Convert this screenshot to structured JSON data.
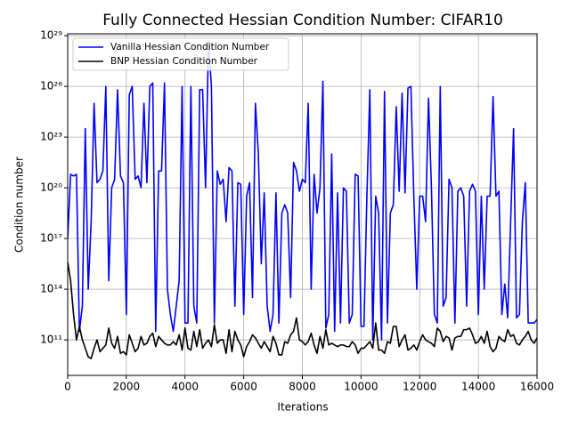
{
  "chart_data": {
    "type": "line",
    "title": "Fully Connected Hessian Condition Number: CIFAR10",
    "xlabel": "Iterations",
    "ylabel": "Condition number",
    "yscale": "log",
    "grid": true,
    "legend": "upper left",
    "xlim": [
      0,
      16000
    ],
    "xticks": [
      0,
      2000,
      4000,
      6000,
      8000,
      10000,
      12000,
      14000,
      16000
    ],
    "ylim": [
      790000000.0,
      1.3e+29
    ],
    "yticks": [
      {
        "value": 100000000000.0,
        "label": "10¹¹"
      },
      {
        "value": 100000000000000.0,
        "label": "10¹⁴"
      },
      {
        "value": 1e+17,
        "label": "10¹⁷"
      },
      {
        "value": 1e+20,
        "label": "10²⁰"
      },
      {
        "value": 1e+23,
        "label": "10²³"
      },
      {
        "value": 1e+26,
        "label": "10²⁶"
      },
      {
        "value": 1e+29,
        "label": "10²⁹"
      }
    ],
    "x": [
      0,
      100,
      200,
      300,
      400,
      500,
      600,
      700,
      800,
      900,
      1000,
      1100,
      1200,
      1300,
      1400,
      1500,
      1600,
      1700,
      1800,
      1900,
      2000,
      2100,
      2200,
      2300,
      2400,
      2500,
      2600,
      2700,
      2800,
      2900,
      3000,
      3100,
      3200,
      3300,
      3400,
      3500,
      3600,
      3700,
      3800,
      3900,
      4000,
      4100,
      4200,
      4300,
      4400,
      4500,
      4600,
      4700,
      4800,
      4900,
      5000,
      5100,
      5200,
      5300,
      5400,
      5500,
      5600,
      5700,
      5800,
      5900,
      6000,
      6100,
      6200,
      6300,
      6400,
      6500,
      6600,
      6700,
      6800,
      6900,
      7000,
      7100,
      7200,
      7300,
      7400,
      7500,
      7600,
      7700,
      7800,
      7900,
      8000,
      8100,
      8200,
      8300,
      8400,
      8500,
      8600,
      8700,
      8800,
      8900,
      9000,
      9100,
      9200,
      9300,
      9400,
      9500,
      9600,
      9700,
      9800,
      9900,
      10000,
      10100,
      10200,
      10300,
      10400,
      10500,
      10600,
      10700,
      10800,
      10900,
      11000,
      11100,
      11200,
      11300,
      11400,
      11500,
      11600,
      11700,
      11800,
      11900,
      12000,
      12100,
      12200,
      12300,
      12400,
      12500,
      12600,
      12700,
      12800,
      12900,
      13000,
      13100,
      13200,
      13300,
      13400,
      13500,
      13600,
      13700,
      13800,
      13900,
      14000,
      14100,
      14200,
      14300,
      14400,
      14500,
      14600,
      14700,
      14800,
      14900,
      15000,
      15100,
      15200,
      15300,
      15400,
      15500,
      15600,
      15700,
      15800,
      15900,
      16000
    ],
    "series": [
      {
        "name": "Vanilla Hessian Condition Number",
        "color": "#0000ff",
        "values": [
          1e+17,
          6.3e+20,
          5e+20,
          6.3e+20,
          320000000000.0,
          10000000000000.0,
          3.2e+23,
          100000000000000.0,
          1e+18,
          1e+25,
          2e+20,
          3.2e+20,
          1e+21,
          1e+26,
          320000000000000.0,
          1e+20,
          3.2e+20,
          6.3e+25,
          5e+20,
          2e+20,
          3200000000000.0,
          3.2e+25,
          1e+26,
          3.2e+20,
          5e+20,
          1e+20,
          1e+25,
          2e+20,
          1e+26,
          1.6e+26,
          320000000000.0,
          1e+21,
          1e+21,
          1.6e+26,
          100000000000000.0,
          3200000000000.0,
          320000000000.0,
          10000000000000.0,
          320000000000000.0,
          1e+26,
          1000000000000.0,
          1000000000000.0,
          1e+26,
          10000000000000.0,
          1000000000000.0,
          6.3e+25,
          6.3e+25,
          1e+20,
          5e+28,
          1e+26,
          1000000000000.0,
          1e+21,
          1.6e+20,
          3.2e+20,
          1e+18,
          1.6e+21,
          1e+21,
          10000000000000.0,
          2e+20,
          1.6e+20,
          3200000000000.0,
          3.2e+19,
          2e+20,
          32000000000000.0,
          1e+25,
          1e+22,
          3200000000000000.0,
          5e+19,
          10000000000000.0,
          320000000000.0,
          3200000000000.0,
          5e+19,
          1000000000000.0,
          3.2e+18,
          1e+19,
          3.2e+18,
          32000000000000.0,
          3.2e+21,
          1e+21,
          6.3e+19,
          3.2e+20,
          2e+20,
          1e+25,
          100000000000000.0,
          6.3e+20,
          3.2e+18,
          1e+20,
          2e+26,
          500000000000.0,
          3200000000000.0,
          1e+22,
          320000000000.0,
          5e+19,
          1000000000000.0,
          1e+20,
          6.3e+19,
          1000000000000.0,
          3200000000000.0,
          6.3e+20,
          5e+20,
          630000000000.0,
          630000000000.0,
          3.2e+19,
          6.3e+25,
          100000000000.0,
          3.2e+19,
          3.2e+18,
          100000000000.0,
          5e+25,
          1000000000000.0,
          3.2e+18,
          1e+19,
          6.3e+24,
          6.3e+19,
          4e+25,
          5e+19,
          7.9e+25,
          1e+26,
          3.2e+19,
          100000000000000.0,
          3.2e+19,
          3.2e+19,
          1e+18,
          2e+25,
          1e+20,
          3200000000000.0,
          1000000000000.0,
          1e+26,
          10000000000000.0,
          32000000000000.0,
          3.2e+20,
          1e+20,
          1000000000000.0,
          6.3e+19,
          1e+20,
          3.2e+19,
          10000000000000.0,
          6.3e+19,
          1.6e+20,
          6.3e+19,
          3200000000000.0,
          3.2e+19,
          100000000000000.0,
          3.2e+19,
          3.2e+19,
          2.5e+25,
          3.2e+19,
          6.3e+19,
          3200000000000.0,
          200000000000000.0,
          2000000000000.0,
          1e+18,
          3.2e+23,
          2000000000000.0,
          3200000000000.0,
          1e+18,
          2e+20,
          1000000000000.0,
          1000000000000.0,
          1000000000000.0,
          1600000000000.0
        ]
      },
      {
        "name": "BNP Hessian Condition Number",
        "color": "#000000",
        "values": [
          4000000000000000.0,
          320000000000000.0,
          3200000000000.0,
          100000000000.0,
          630000000000.0,
          100000000000.0,
          32000000000.0,
          10000000000.0,
          7900000000.0,
          32000000000.0,
          100000000000.0,
          20000000000.0,
          32000000000.0,
          50000000000.0,
          500000000000.0,
          63000000000.0,
          32000000000.0,
          160000000000.0,
          16000000000.0,
          20000000000.0,
          13000000000.0,
          200000000000.0,
          63000000000.0,
          20000000000.0,
          32000000000.0,
          160000000000.0,
          50000000000.0,
          63000000000.0,
          160000000000.0,
          250000000000.0,
          40000000000.0,
          160000000000.0,
          100000000000.0,
          63000000000.0,
          50000000000.0,
          50000000000.0,
          79000000000.0,
          50000000000.0,
          200000000000.0,
          25000000000.0,
          500000000000.0,
          32000000000.0,
          25000000000.0,
          320000000000.0,
          40000000000.0,
          400000000000.0,
          32000000000.0,
          63000000000.0,
          100000000000.0,
          40000000000.0,
          790000000000.0,
          63000000000.0,
          100000000000.0,
          100000000000.0,
          16000000000.0,
          400000000000.0,
          20000000000.0,
          320000000000.0,
          100000000000.0,
          50000000000.0,
          10000000000.0,
          40000000000.0,
          79000000000.0,
          200000000000.0,
          130000000000.0,
          63000000000.0,
          32000000000.0,
          79000000000.0,
          40000000000.0,
          20000000000.0,
          160000000000.0,
          63000000000.0,
          13000000000.0,
          13000000000.0,
          79000000000.0,
          63000000000.0,
          200000000000.0,
          320000000000.0,
          2000000000000.0,
          100000000000.0,
          79000000000.0,
          50000000000.0,
          79000000000.0,
          250000000000.0,
          50000000000.0,
          16000000000.0,
          160000000000.0,
          32000000000.0,
          400000000000.0,
          50000000000.0,
          63000000000.0,
          50000000000.0,
          40000000000.0,
          50000000000.0,
          50000000000.0,
          40000000000.0,
          40000000000.0,
          79000000000.0,
          50000000000.0,
          16000000000.0,
          32000000000.0,
          32000000000.0,
          50000000000.0,
          79000000000.0,
          32000000000.0,
          1000000000000.0,
          25000000000.0,
          25000000000.0,
          16000000000.0,
          79000000000.0,
          63000000000.0,
          630000000000.0,
          630000000000.0,
          40000000000.0,
          100000000000.0,
          200000000000.0,
          25000000000.0,
          32000000000.0,
          50000000000.0,
          25000000000.0,
          79000000000.0,
          200000000000.0,
          100000000000.0,
          79000000000.0,
          63000000000.0,
          40000000000.0,
          500000000000.0,
          320000000000.0,
          79000000000.0,
          160000000000.0,
          130000000000.0,
          25000000000.0,
          130000000000.0,
          160000000000.0,
          160000000000.0,
          400000000000.0,
          400000000000.0,
          500000000000.0,
          200000000000.0,
          63000000000.0,
          79000000000.0,
          160000000000.0,
          63000000000.0,
          320000000000.0,
          40000000000.0,
          20000000000.0,
          32000000000.0,
          160000000000.0,
          100000000000.0,
          79000000000.0,
          400000000000.0,
          160000000000.0,
          200000000000.0,
          63000000000.0,
          50000000000.0,
          100000000000.0,
          160000000000.0,
          320000000000.0,
          100000000000.0,
          63000000000.0,
          130000000000.0
        ]
      }
    ]
  }
}
